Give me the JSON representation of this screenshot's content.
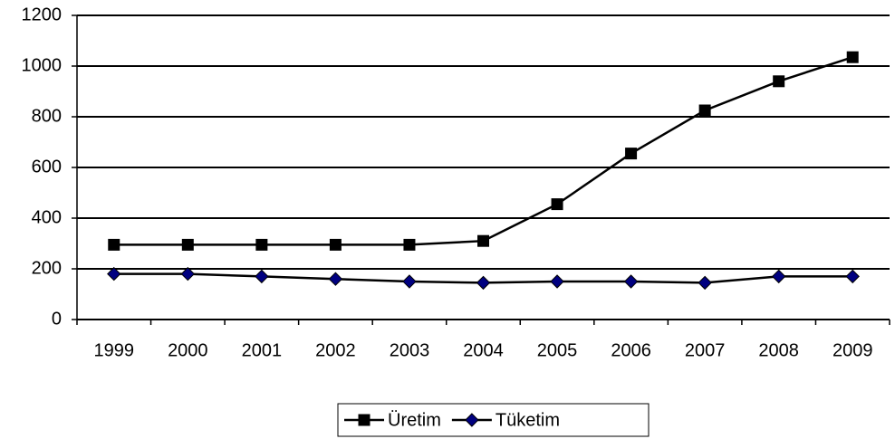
{
  "chart_data": {
    "type": "line",
    "categories": [
      "1999",
      "2000",
      "2001",
      "2002",
      "2003",
      "2004",
      "2005",
      "2006",
      "2007",
      "2008",
      "2009"
    ],
    "series": [
      {
        "name": "Üretim",
        "color": "#000000",
        "marker": "square",
        "values": [
          295,
          295,
          295,
          295,
          295,
          310,
          455,
          655,
          825,
          940,
          1035
        ]
      },
      {
        "name": "Tüketim",
        "color": "#000080",
        "marker": "diamond",
        "values": [
          180,
          180,
          170,
          160,
          150,
          145,
          150,
          150,
          145,
          170,
          170
        ]
      }
    ],
    "ylim": [
      0,
      1200
    ],
    "yticks": [
      0,
      200,
      400,
      600,
      800,
      1000,
      1200
    ],
    "grid": true,
    "legend": "bottom"
  }
}
